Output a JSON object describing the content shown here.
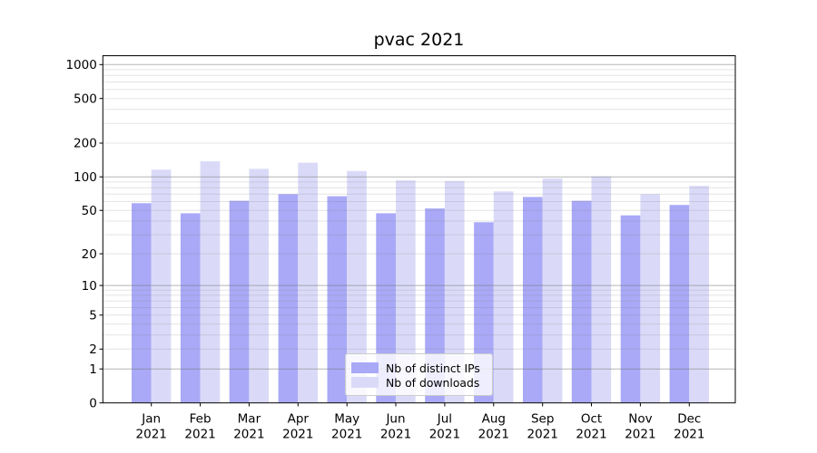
{
  "title": "pvac 2021",
  "chart_data": {
    "type": "bar",
    "title": "pvac 2021",
    "categories": [
      "Jan 2021",
      "Feb 2021",
      "Mar 2021",
      "Apr 2021",
      "May 2021",
      "Jun 2021",
      "Jul 2021",
      "Aug 2021",
      "Sep 2021",
      "Oct 2021",
      "Nov 2021",
      "Dec 2021"
    ],
    "series": [
      {
        "name": "Nb of distinct IPs",
        "color": "#a9a9f7",
        "values": [
          58,
          47,
          61,
          70,
          67,
          47,
          52,
          39,
          66,
          61,
          45,
          56
        ]
      },
      {
        "name": "Nb of downloads",
        "color": "#dadaf8",
        "values": [
          116,
          138,
          118,
          134,
          113,
          93,
          92,
          74,
          97,
          101,
          70,
          83
        ]
      }
    ],
    "xlabel": "",
    "ylabel": "",
    "yscale": "log1p",
    "ylim": [
      0,
      1198
    ],
    "yticks": [
      0,
      1,
      2,
      5,
      10,
      20,
      50,
      100,
      200,
      500,
      1000
    ],
    "ytick_major_grid": [
      1,
      10,
      100,
      1000
    ],
    "grid": true,
    "legend_position": "lower center"
  },
  "legend": {
    "items": [
      {
        "label": "Nb of distinct IPs",
        "color": "#a9a9f7"
      },
      {
        "label": "Nb of downloads",
        "color": "#dadaf8"
      }
    ]
  },
  "colors": {
    "bar_ips": "#a9a9f7",
    "bar_downloads": "#dadaf8",
    "grid_major": "#b5b5b5",
    "grid_minor": "#e4e4e4",
    "axis": "#000000",
    "background": "#ffffff"
  }
}
